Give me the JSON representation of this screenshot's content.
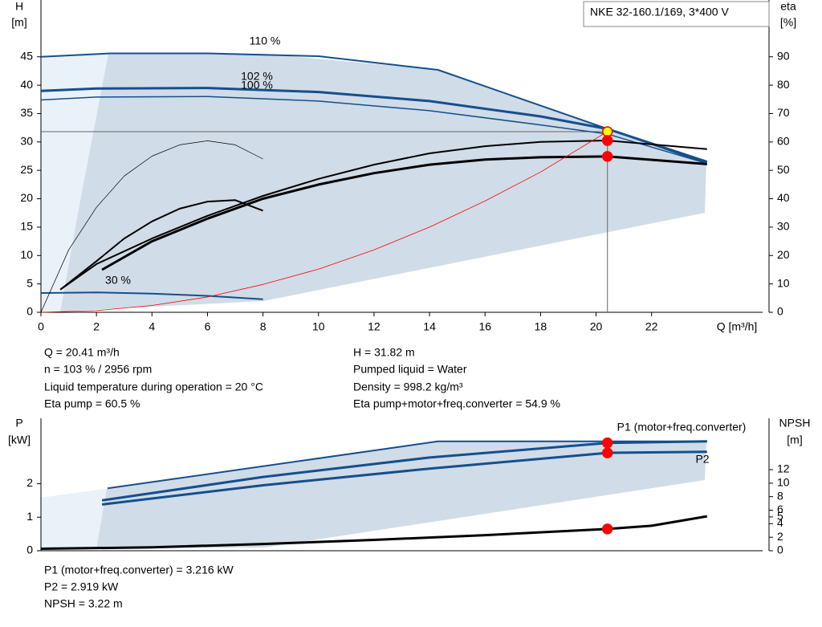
{
  "chart_data": [
    {
      "type": "line",
      "title": "NKE 32-160.1/169, 3*400 V",
      "ylabel": "H",
      "yunit": "[m]",
      "y2label": "eta",
      "y2unit": "[%]",
      "xlabel": "Q [m³/h]",
      "xlim": [
        0,
        26
      ],
      "xticks": [
        0,
        2,
        4,
        6,
        8,
        10,
        12,
        14,
        16,
        18,
        20,
        22
      ],
      "ylim": [
        0,
        55
      ],
      "yticks": [
        0,
        5,
        10,
        15,
        20,
        25,
        30,
        35,
        40,
        45
      ],
      "y2lim": [
        0,
        110
      ],
      "y2ticks": [
        0,
        10,
        20,
        30,
        40,
        50,
        60,
        70,
        80,
        90
      ],
      "annotations": [
        "110 %",
        "102 %",
        "100 %",
        "30 %"
      ],
      "series": [
        {
          "color": "#154f8c",
          "width": 2,
          "x": [
            0,
            2.5,
            6,
            10,
            14.3,
            24
          ],
          "values": [
            45,
            45.6,
            45.6,
            45.1,
            42.7,
            26.2
          ]
        },
        {
          "color": "#154f8c",
          "width": 3,
          "x": [
            0,
            2,
            6,
            10,
            14,
            18,
            20.41,
            24
          ],
          "values": [
            39,
            39.4,
            39.5,
            38.8,
            37.2,
            34.5,
            32.3,
            26.5
          ]
        },
        {
          "color": "#154f8c",
          "width": 1.5,
          "x": [
            0,
            2,
            6,
            10,
            14,
            18,
            20.41,
            24
          ],
          "values": [
            37.4,
            37.9,
            38,
            37.2,
            35.5,
            33,
            31.4,
            26.2
          ]
        },
        {
          "color": "#154f8c",
          "width": 2,
          "x": [
            0,
            2,
            4,
            6,
            8
          ],
          "values": [
            3.4,
            3.5,
            3.3,
            2.9,
            2.3
          ]
        },
        {
          "color": "#000000",
          "width": 2,
          "axis": "y2",
          "x": [
            0.7,
            2,
            4,
            6,
            8,
            10,
            12,
            14,
            16,
            18,
            20.41,
            24
          ],
          "values": [
            8,
            17,
            26,
            34,
            41,
            47,
            52,
            56,
            58.5,
            60,
            60.5,
            57.5
          ]
        },
        {
          "color": "#000000",
          "width": 3,
          "axis": "y2",
          "x": [
            2.2,
            4,
            6,
            8,
            10,
            12,
            14,
            16,
            18,
            20.41,
            24
          ],
          "values": [
            15,
            25,
            33,
            40,
            45,
            49,
            52,
            53.8,
            54.6,
            54.9,
            52.2
          ]
        },
        {
          "color": "#000000",
          "width": 0.7,
          "axis": "y2",
          "x": [
            0,
            1,
            2,
            3,
            4,
            5,
            6,
            7,
            8
          ],
          "values": [
            0,
            22,
            37,
            48,
            55,
            59,
            60.4,
            59,
            54
          ]
        },
        {
          "color": "#000000",
          "width": 2,
          "axis": "y2",
          "x": [
            0.7,
            2,
            3,
            4,
            5,
            6,
            7,
            8
          ],
          "values": [
            8,
            18,
            26,
            32,
            36.5,
            39,
            39.5,
            35.8
          ]
        },
        {
          "color": "#ff0000",
          "width": 0.8,
          "x": [
            0,
            2,
            4,
            6,
            8,
            10,
            12,
            14,
            16,
            18,
            20.41
          ],
          "values": [
            0,
            0.3,
            1.2,
            2.7,
            4.9,
            7.6,
            11,
            15,
            19.6,
            24.7,
            31.82
          ]
        }
      ],
      "guide": {
        "x": 20.41,
        "y": 31.82
      },
      "points": [
        {
          "x": 20.41,
          "y": 31.82,
          "color": "#ffff00"
        },
        {
          "x": 20.41,
          "y": 60.5,
          "axis": "y2",
          "color": "#ff0000"
        },
        {
          "x": 20.41,
          "y": 54.9,
          "axis": "y2",
          "color": "#ff0000"
        }
      ],
      "info": [
        "Q = 20.41 m³/h",
        "n = 103 % / 2956 rpm",
        "Liquid temperature during operation = 20 °C",
        "Eta pump = 60.5 %",
        "H = 31.82 m",
        "Pumped liquid = Water",
        "Density = 998.2 kg/m³",
        "Eta pump+motor+freq.converter = 54.9 %"
      ]
    },
    {
      "type": "line",
      "ylabel": "P",
      "yunit": "[kW]",
      "y2label": "NPSH",
      "y2unit": "[m]",
      "xlim": [
        0,
        26
      ],
      "ylim": [
        0,
        3.95
      ],
      "yticks": [
        0,
        1,
        2
      ],
      "y2lim": [
        0,
        19.6
      ],
      "y2ticks": [
        0,
        2,
        4,
        5,
        6,
        8,
        10,
        12
      ],
      "annotations": [
        "P1 (motor+freq.converter)",
        "P2"
      ],
      "series": [
        {
          "color": "#154f8c",
          "width": 2,
          "x": [
            2.4,
            14.3,
            24
          ],
          "values": [
            1.86,
            3.26,
            3.26
          ]
        },
        {
          "color": "#154f8c",
          "width": 3,
          "x": [
            2.2,
            8,
            14,
            20.41,
            24
          ],
          "values": [
            1.5,
            2.2,
            2.78,
            3.216,
            3.26
          ]
        },
        {
          "color": "#154f8c",
          "width": 3,
          "x": [
            2.2,
            8,
            14,
            20.41,
            24
          ],
          "values": [
            1.38,
            1.95,
            2.45,
            2.919,
            2.95
          ]
        },
        {
          "color": "#000000",
          "width": 3,
          "axis": "y2",
          "x": [
            0,
            4,
            8,
            12,
            16,
            20.41,
            22,
            23,
            24
          ],
          "values": [
            0.3,
            0.5,
            1.0,
            1.6,
            2.3,
            3.22,
            3.7,
            4.4,
            5.1
          ]
        }
      ],
      "points": [
        {
          "x": 20.41,
          "y": 3.216,
          "color": "#ff0000"
        },
        {
          "x": 20.41,
          "y": 2.919,
          "color": "#ff0000"
        },
        {
          "x": 20.41,
          "y": 3.22,
          "axis": "y2",
          "color": "#ff0000"
        }
      ],
      "info": [
        "P1 (motor+freq.converter) = 3.216 kW",
        "P2 = 2.919 kW",
        "NPSH = 3.22 m"
      ]
    }
  ]
}
